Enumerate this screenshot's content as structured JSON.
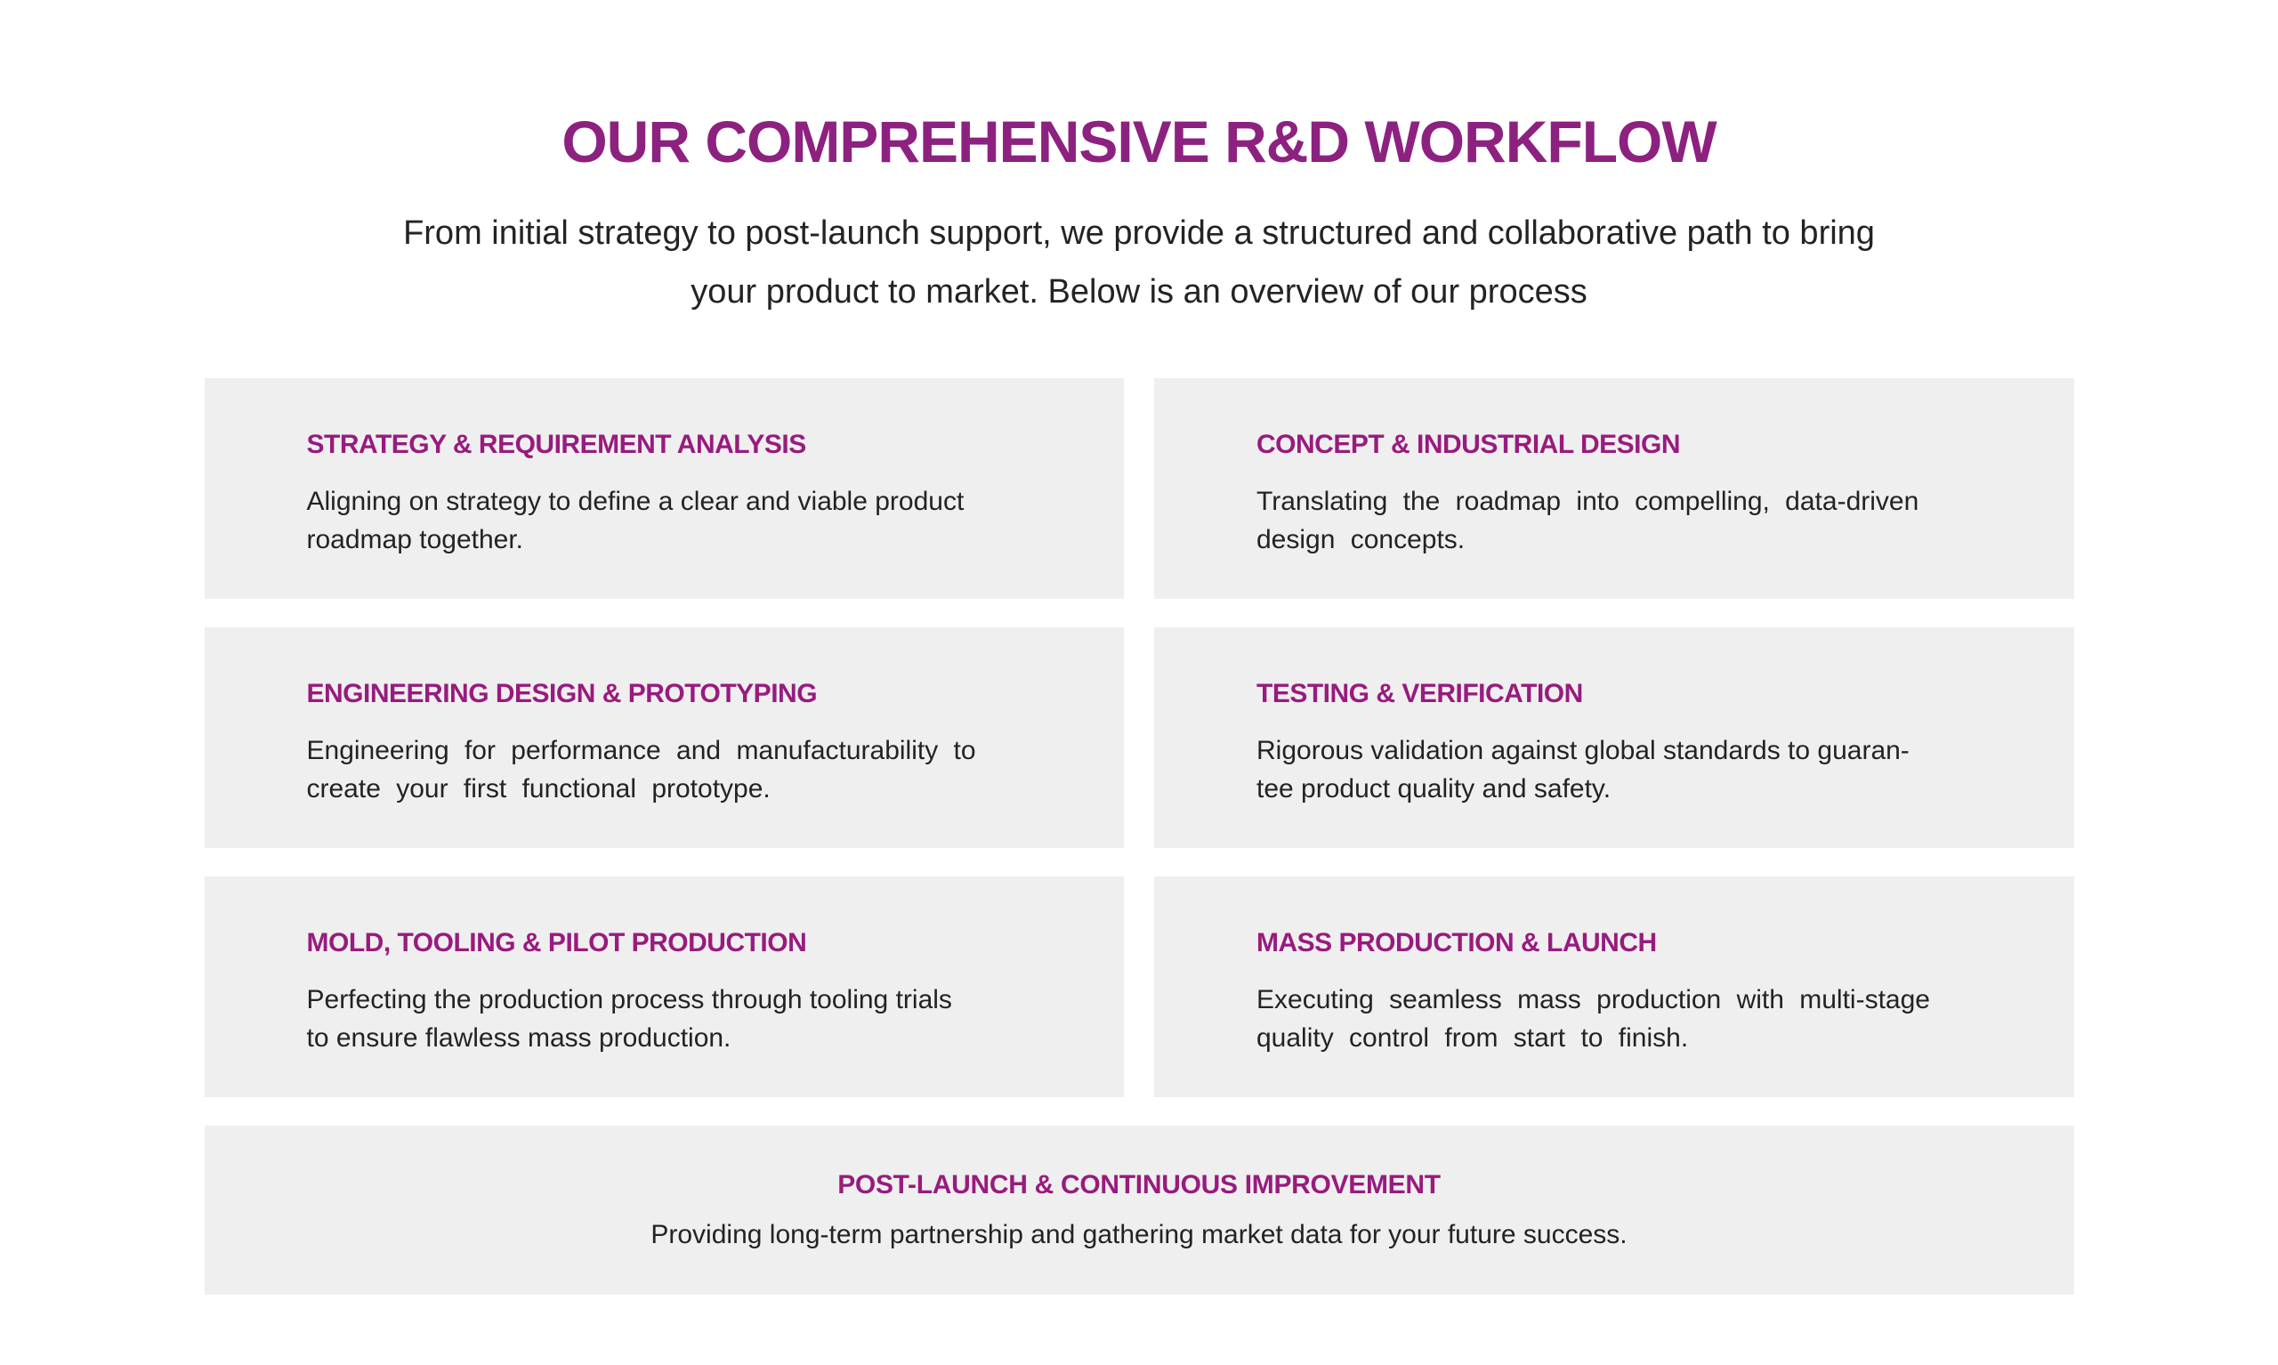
{
  "page": {
    "title": "OUR COMPREHENSIVE R&D WORKFLOW",
    "subtitle": "From initial strategy to post-launch support, we provide a structured and collaborative path to bring\nyour product to market. Below is an overview of our process"
  },
  "colors": {
    "title_accent": "#8d2180",
    "heading_accent": "#981b7e",
    "body_text": "#232323",
    "card_bg": "#efefef",
    "page_bg": "#ffffff"
  },
  "cards": [
    {
      "title": "STRATEGY & REQUIREMENT ANALYSIS",
      "body": "Aligning on strategy to define a clear and viable product\nroadmap together."
    },
    {
      "title": "CONCEPT & INDUSTRIAL DESIGN",
      "body": "Translating the roadmap into compelling, data-driven\ndesign concepts."
    },
    {
      "title": "ENGINEERING DESIGN & PROTOTYPING",
      "body": "Engineering for performance and manufacturability to\ncreate your first functional prototype."
    },
    {
      "title": "TESTING & VERIFICATION",
      "body": "Rigorous validation against global standards to guaran-\ntee product quality and safety."
    },
    {
      "title": "MOLD, TOOLING & PILOT PRODUCTION",
      "body": "Perfecting the production process through tooling trials\nto ensure flawless mass production."
    },
    {
      "title": "MASS PRODUCTION & LAUNCH",
      "body": "Executing seamless mass production with multi-stage\nquality control from start to finish."
    }
  ],
  "footer_card": {
    "title": "POST-LAUNCH & CONTINUOUS IMPROVEMENT",
    "body": "Providing long-term partnership and gathering market data for your future success."
  }
}
